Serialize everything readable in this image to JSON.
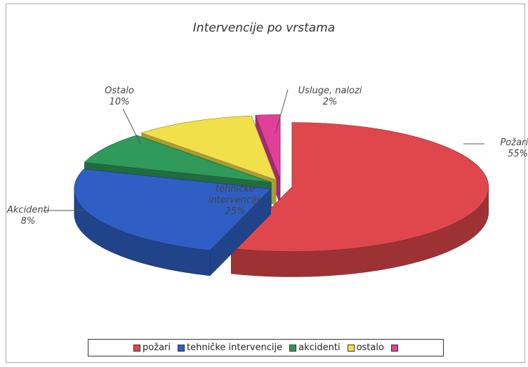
{
  "chart_data": {
    "type": "pie3d",
    "title": "Intervencije po vrstama",
    "categories": [
      "Požari",
      "tehničke intervencije",
      "Akcidenti",
      "Ostalo",
      "Usluge, nalozi"
    ],
    "values": [
      55,
      25,
      8,
      10,
      2
    ],
    "value_labels": [
      "55%",
      "25%",
      "8%",
      "10%",
      "2%"
    ],
    "colors": [
      "#e0474c",
      "#2f5fc4",
      "#2f9a5a",
      "#f2e04a",
      "#e0409a"
    ],
    "legend": [
      "požari",
      "tehničke intervencije",
      "akcidenti",
      "ostalo"
    ]
  }
}
